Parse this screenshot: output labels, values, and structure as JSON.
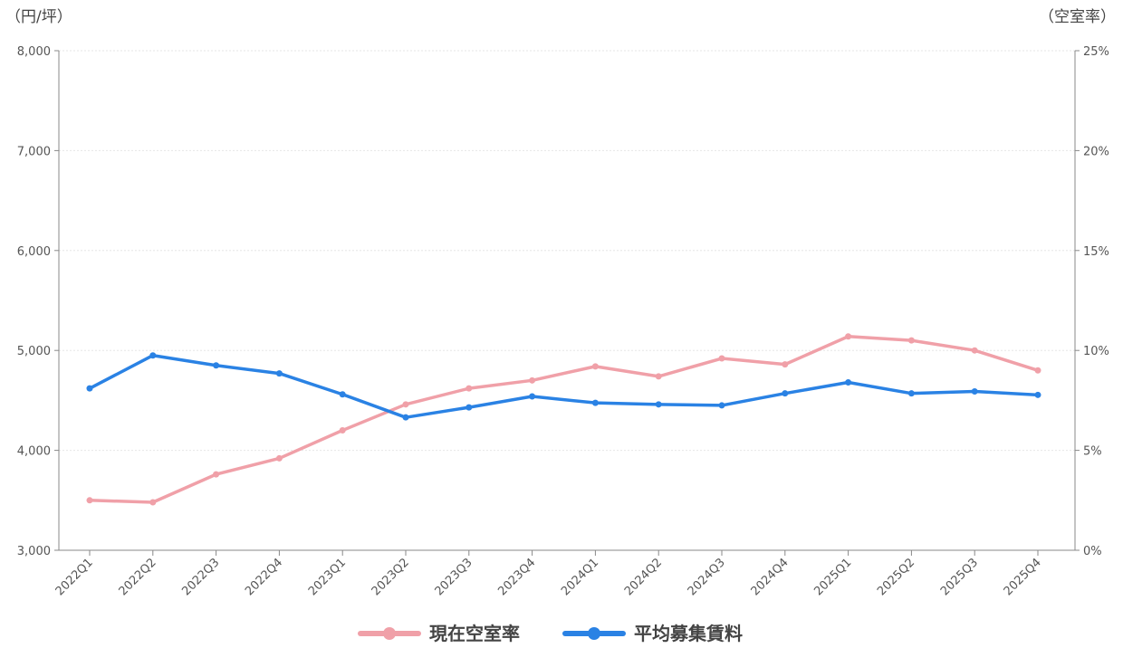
{
  "chart_data": {
    "type": "line",
    "categories": [
      "2022Q1",
      "2022Q2",
      "2022Q3",
      "2022Q4",
      "2023Q1",
      "2023Q2",
      "2023Q3",
      "2023Q4",
      "2024Q1",
      "2024Q2",
      "2024Q3",
      "2024Q4",
      "2025Q1",
      "2025Q2",
      "2025Q3",
      "2025Q4"
    ],
    "y_left": {
      "unit_label": "（円/坪）",
      "range": [
        3000,
        8000
      ],
      "ticks": [
        3000,
        4000,
        5000,
        6000,
        7000,
        8000
      ],
      "tick_labels": [
        "3,000",
        "4,000",
        "5,000",
        "6,000",
        "7,000",
        "8,000"
      ]
    },
    "y_right": {
      "unit_label": "（空室率）",
      "range": [
        0,
        25
      ],
      "ticks": [
        0,
        5,
        10,
        15,
        20,
        25
      ],
      "tick_labels": [
        "0%",
        "5%",
        "10%",
        "15%",
        "20%",
        "25%"
      ]
    },
    "series": [
      {
        "name": "現在空室率",
        "axis": "right",
        "color": "#f0a0a8",
        "values": [
          2.5,
          2.4,
          3.8,
          4.6,
          6.0,
          7.3,
          8.1,
          8.5,
          9.2,
          8.7,
          9.6,
          9.3,
          10.7,
          10.5,
          10.0,
          9.0
        ]
      },
      {
        "name": "平均募集賃料",
        "axis": "left",
        "color": "#2a82e4",
        "values": [
          4620,
          4950,
          4850,
          4770,
          4560,
          4330,
          4430,
          4540,
          4475,
          4460,
          4450,
          4570,
          4680,
          4570,
          4590,
          4555
        ]
      }
    ],
    "grid": true,
    "legend_position": "bottom-center"
  }
}
